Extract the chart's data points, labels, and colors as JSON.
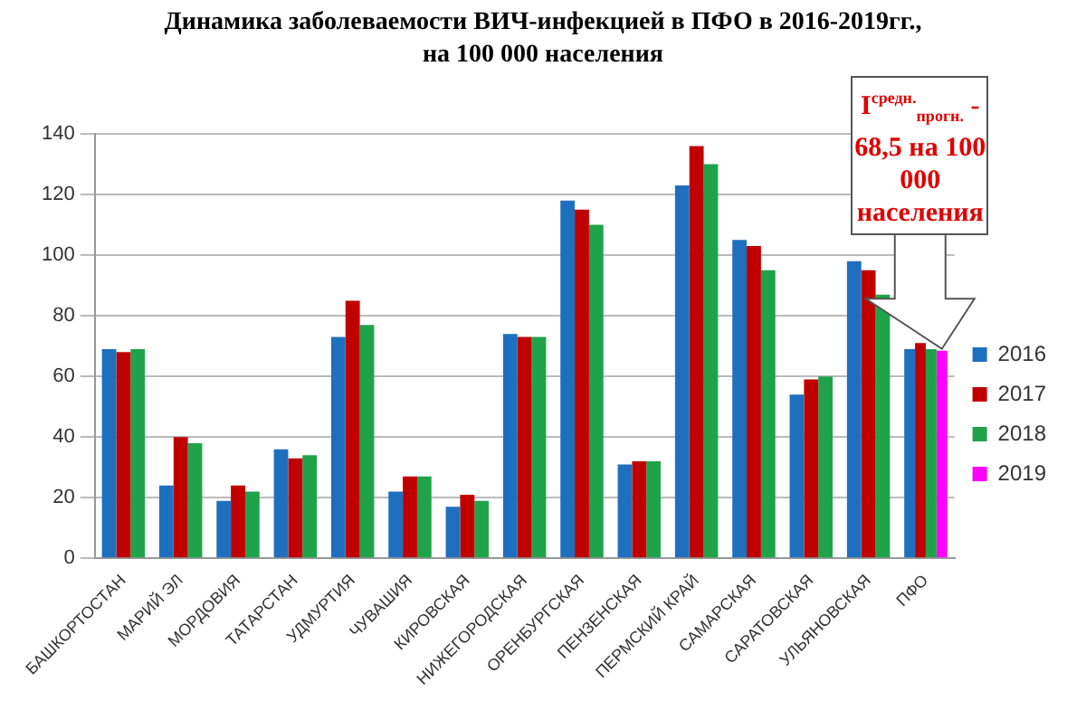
{
  "chart_data": {
    "type": "bar",
    "title": "Динамика заболеваемости ВИЧ-инфекцией в ПФО в 2016-2019гг., на 100 000 населения",
    "categories": [
      "БАШКОРТОСТАН",
      "МАРИЙ ЭЛ",
      "МОРДОВИЯ",
      "ТАТАРСТАН",
      "УДМУРТИЯ",
      "ЧУВАШИЯ",
      "КИРОВСКАЯ",
      "НИЖЕГОРОДСКАЯ",
      "ОРЕНБУРГСКАЯ",
      "ПЕНЗЕНСКАЯ",
      "ПЕРМСКИЙ КРАЙ",
      "САМАРСКАЯ",
      "САРАТОВСКАЯ",
      "УЛЬЯНОВСКАЯ",
      "ПФО"
    ],
    "series": [
      {
        "name": "2016",
        "color": "#1f6fbf",
        "values": [
          69,
          24,
          19,
          36,
          73,
          22,
          17,
          74,
          118,
          31,
          123,
          105,
          54,
          98,
          69
        ]
      },
      {
        "name": "2017",
        "color": "#c00000",
        "values": [
          68,
          40,
          24,
          33,
          85,
          27,
          21,
          73,
          115,
          32,
          136,
          103,
          59,
          95,
          71
        ]
      },
      {
        "name": "2018",
        "color": "#1fa34a",
        "values": [
          69,
          38,
          22,
          34,
          77,
          27,
          19,
          73,
          110,
          32,
          130,
          95,
          60,
          87,
          69
        ]
      },
      {
        "name": "2019",
        "color": "#ff00ff",
        "values": [
          null,
          null,
          null,
          null,
          null,
          null,
          null,
          null,
          null,
          null,
          null,
          null,
          null,
          null,
          68.5
        ]
      }
    ],
    "ylim": [
      0,
      140
    ],
    "yticks": [
      0,
      20,
      40,
      60,
      80,
      100,
      120,
      140
    ],
    "grid": "y",
    "legend": "right",
    "annotations": [
      "I$^{средн.}$$_{прогн.}$ - 68,5 на 100 000 населения"
    ]
  }
}
